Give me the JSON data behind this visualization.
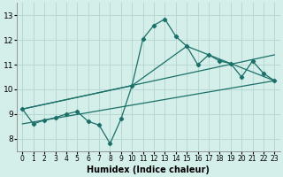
{
  "xlabel": "Humidex (Indice chaleur)",
  "background_color": "#d4eeea",
  "grid_color": "#b8d8d4",
  "line_color": "#1a7068",
  "xlim": [
    -0.5,
    23.5
  ],
  "ylim": [
    7.5,
    13.5
  ],
  "yticks": [
    8,
    9,
    10,
    11,
    12,
    13
  ],
  "xticks": [
    0,
    1,
    2,
    3,
    4,
    5,
    6,
    7,
    8,
    9,
    10,
    11,
    12,
    13,
    14,
    15,
    16,
    17,
    18,
    19,
    20,
    21,
    22,
    23
  ],
  "main_x": [
    0,
    1,
    2,
    3,
    4,
    5,
    6,
    7,
    8,
    9,
    10,
    11,
    12,
    13,
    14,
    15,
    16,
    17,
    18,
    19,
    20,
    21,
    22,
    23
  ],
  "main_y": [
    9.2,
    8.6,
    8.75,
    8.85,
    9.0,
    9.1,
    8.7,
    8.55,
    7.8,
    8.8,
    10.15,
    12.05,
    12.6,
    12.85,
    12.15,
    11.75,
    11.0,
    11.4,
    11.15,
    11.05,
    10.5,
    11.15,
    10.65,
    10.35
  ],
  "trend1_x": [
    0,
    23
  ],
  "trend1_y": [
    8.6,
    10.35
  ],
  "trend2_x": [
    0,
    23
  ],
  "trend2_y": [
    9.2,
    11.4
  ],
  "trend3_x": [
    0,
    10,
    15,
    19,
    23
  ],
  "trend3_y": [
    9.2,
    10.15,
    11.75,
    11.05,
    10.35
  ]
}
